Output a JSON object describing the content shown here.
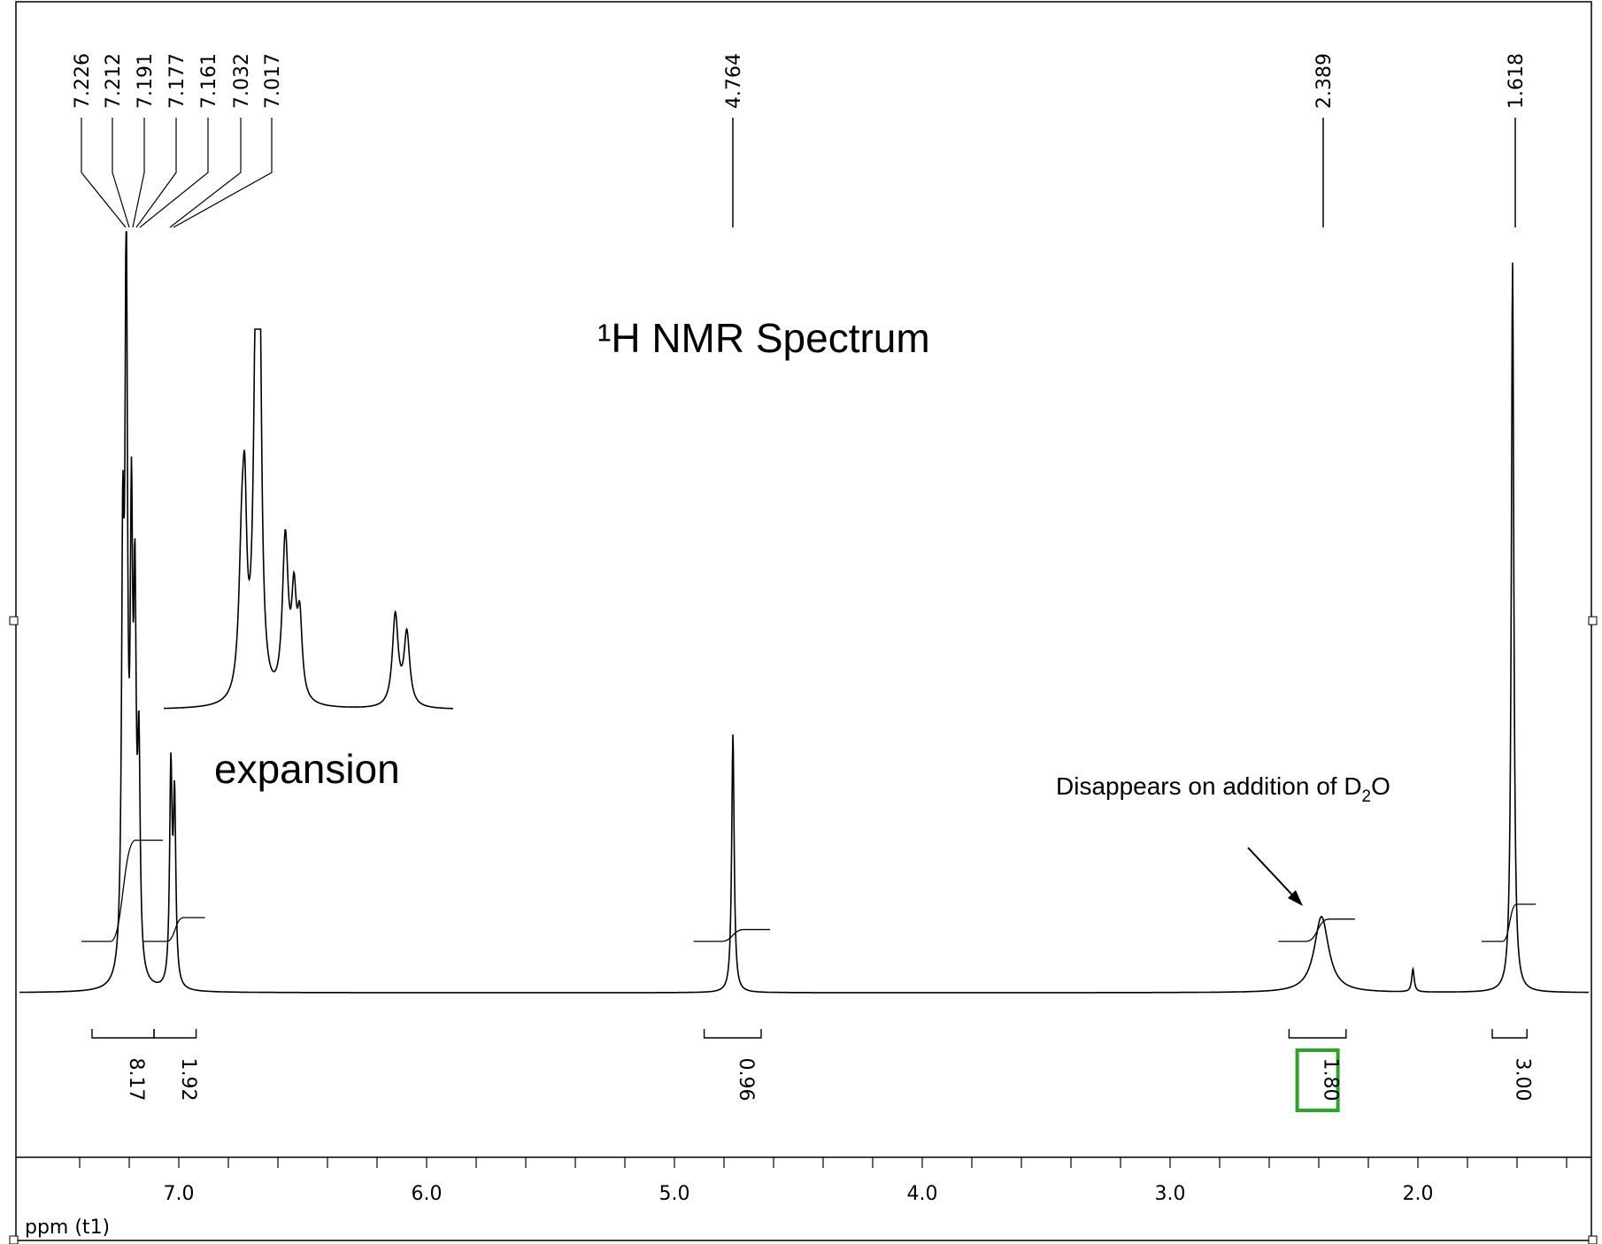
{
  "chart_data": {
    "type": "line",
    "title": "¹H NMR Spectrum",
    "xlabel": "ppm (t1)",
    "ylabel": "",
    "x_reversed": true,
    "xlim": [
      7.55,
      1.3
    ],
    "x_ticks": [
      "7.0",
      "6.0",
      "5.0",
      "4.0",
      "3.0",
      "2.0"
    ],
    "grid": false,
    "peaks": [
      {
        "ppm": 7.2,
        "height": 0.93
      },
      {
        "ppm": 7.03,
        "height": 0.28
      },
      {
        "ppm": 4.764,
        "height": 0.34
      },
      {
        "ppm": 2.389,
        "height": 0.1
      },
      {
        "ppm": 2.02,
        "height": 0.03
      },
      {
        "ppm": 1.618,
        "height": 0.96
      }
    ],
    "peak_labels": [
      "7.226",
      "7.212",
      "7.191",
      "7.177",
      "7.161",
      "7.032",
      "7.017",
      "4.764",
      "2.389",
      "1.618"
    ],
    "integrals": [
      {
        "label": "8.17",
        "from": 7.35,
        "to": 7.1
      },
      {
        "label": "1.92",
        "from": 7.1,
        "to": 6.93
      },
      {
        "label": "0.96",
        "from": 4.88,
        "to": 4.65
      },
      {
        "label": "1.80",
        "from": 2.52,
        "to": 2.29,
        "highlight": "#2aa52a"
      },
      {
        "label": "3.00",
        "from": 1.7,
        "to": 1.56
      }
    ],
    "annotations": {
      "expansion": "expansion",
      "note_text": "Disappears on addition of D",
      "note_sub": "2",
      "note_end": "O"
    },
    "colors": {
      "line": "#000000",
      "highlight": "#2aa52a"
    }
  }
}
